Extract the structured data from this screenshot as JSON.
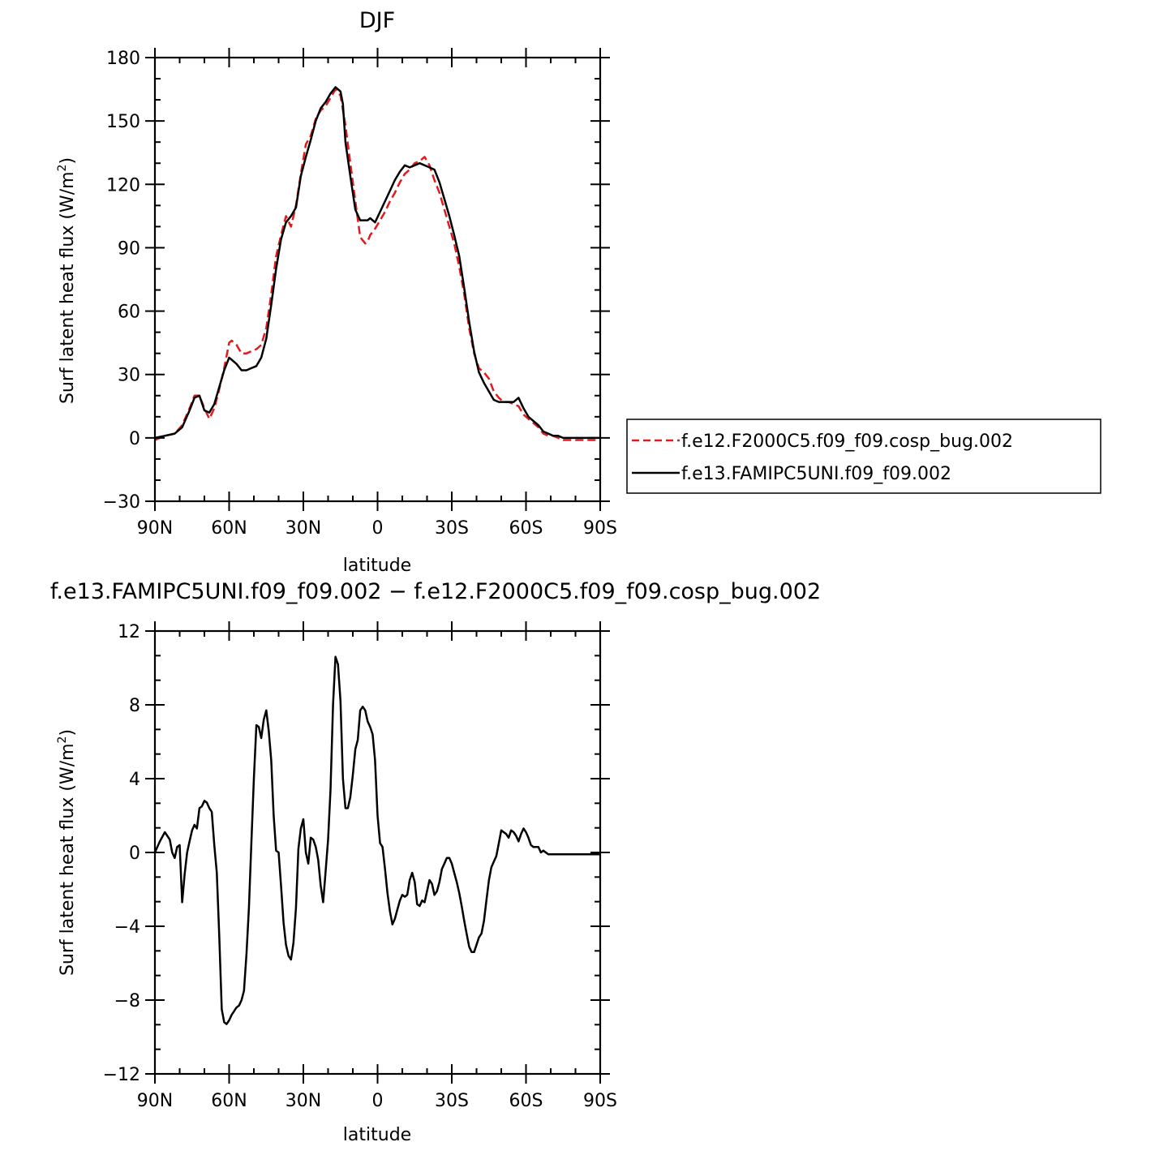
{
  "chart_data": [
    {
      "type": "line",
      "title": "DJF",
      "xlabel": "latitude",
      "ylabel": "Surf latent heat flux (W/m",
      "ylabel_sup": "2",
      "ylabel_tail": ")",
      "xlim": [
        90,
        -90
      ],
      "ylim": [
        -30,
        180
      ],
      "x_ticks": [
        90,
        60,
        30,
        0,
        -30,
        -60,
        -90
      ],
      "x_tick_labels": [
        "90N",
        "60N",
        "30N",
        "0",
        "30S",
        "60S",
        "90S"
      ],
      "y_ticks": [
        -30,
        0,
        30,
        60,
        90,
        120,
        150,
        180
      ],
      "y_tick_labels": [
        "−30",
        "0",
        "30",
        "60",
        "90",
        "120",
        "150",
        "180"
      ],
      "legend_position": "right",
      "series": [
        {
          "name": "f.e12.F2000C5.f09_f09.cosp_bug.002",
          "color": "#e31a1c",
          "style": "dashed",
          "x": [
            90,
            86,
            82,
            79,
            76,
            74,
            72,
            70,
            68,
            66,
            64,
            62,
            60,
            59,
            57,
            55,
            53,
            51,
            49,
            47,
            45,
            43,
            41,
            39,
            37,
            35,
            33,
            31,
            29,
            27,
            25,
            23,
            21,
            19,
            17,
            15,
            14,
            13,
            11,
            9,
            7,
            5,
            4,
            3,
            1,
            -1,
            -3,
            -5,
            -7,
            -9,
            -11,
            -13,
            -15,
            -17,
            -19,
            -21,
            -23,
            -25,
            -27,
            -29,
            -31,
            -33,
            -35,
            -37,
            -39,
            -41,
            -43,
            -45,
            -47,
            -49,
            -51,
            -53,
            -55,
            -57,
            -59,
            -61,
            -63,
            -65,
            -67,
            -69,
            -71,
            -73,
            -75,
            -77,
            -79,
            -81,
            -83,
            -85,
            -87,
            -90
          ],
          "y": [
            -1,
            1,
            2,
            6,
            14,
            20,
            20,
            14,
            9,
            14,
            23,
            33,
            45,
            46,
            44,
            40,
            40,
            41,
            42,
            44,
            52,
            68,
            86,
            96,
            105,
            100,
            110,
            125,
            139,
            143,
            151,
            155,
            157,
            161,
            165,
            162,
            155,
            148,
            130,
            112,
            95,
            92,
            93,
            96,
            99,
            103,
            107,
            112,
            116,
            121,
            125,
            127,
            130,
            131,
            133,
            129,
            122,
            116,
            108,
            100,
            92,
            81,
            68,
            52,
            40,
            33,
            31,
            28,
            22,
            19,
            17,
            17,
            16,
            15,
            11,
            9,
            7,
            5,
            2,
            1,
            1,
            0,
            -1,
            -1,
            -1,
            -1,
            -1,
            -1,
            -1,
            -1
          ]
        },
        {
          "name": "f.e13.FAMIPC5UNI.f09_f09.002",
          "color": "#000000",
          "style": "solid",
          "x": [
            90,
            86,
            82,
            79,
            76,
            74,
            72,
            70,
            68,
            66,
            64,
            62,
            60,
            59,
            57,
            55,
            53,
            51,
            49,
            47,
            45,
            43,
            41,
            39,
            37,
            35,
            33,
            31,
            29,
            27,
            25,
            23,
            21,
            19,
            17,
            15,
            14,
            13,
            11,
            9,
            7,
            5,
            4,
            3,
            1,
            -1,
            -3,
            -5,
            -7,
            -9,
            -11,
            -13,
            -15,
            -17,
            -19,
            -21,
            -23,
            -25,
            -27,
            -29,
            -31,
            -33,
            -35,
            -37,
            -39,
            -41,
            -43,
            -45,
            -47,
            -49,
            -51,
            -53,
            -55,
            -57,
            -59,
            -61,
            -63,
            -65,
            -67,
            -69,
            -71,
            -73,
            -75,
            -77,
            -79,
            -81,
            -83,
            -85,
            -87,
            -90
          ],
          "y": [
            0,
            1,
            2,
            5,
            13,
            19,
            20,
            13,
            12,
            16,
            24,
            32,
            38,
            37,
            35,
            32,
            32,
            33,
            34,
            38,
            47,
            63,
            80,
            94,
            102,
            105,
            109,
            124,
            133,
            141,
            150,
            156,
            159,
            163,
            166,
            164,
            158,
            140,
            124,
            108,
            103,
            103,
            103,
            104,
            102,
            107,
            112,
            117,
            122,
            126,
            129,
            128,
            129,
            130,
            129,
            128,
            127,
            121,
            113,
            105,
            96,
            86,
            71,
            55,
            41,
            31,
            26,
            22,
            18,
            17,
            17,
            17,
            17,
            19,
            14,
            10,
            8,
            6,
            3,
            2,
            1,
            1,
            0,
            0,
            0,
            0,
            0,
            0,
            0,
            0
          ]
        }
      ]
    },
    {
      "type": "line",
      "title": "f.e13.FAMIPC5UNI.f09_f09.002 − f.e12.F2000C5.f09_f09.cosp_bug.002",
      "xlabel": "latitude",
      "ylabel": "Surf latent heat flux (W/m",
      "ylabel_sup": "2",
      "ylabel_tail": ")",
      "xlim": [
        90,
        -90
      ],
      "ylim": [
        -12,
        12
      ],
      "x_ticks": [
        90,
        60,
        30,
        0,
        -30,
        -60,
        -90
      ],
      "x_tick_labels": [
        "90N",
        "60N",
        "30N",
        "0",
        "30S",
        "60S",
        "90S"
      ],
      "y_ticks": [
        -12,
        -8,
        -4,
        0,
        4,
        8,
        12
      ],
      "y_tick_labels": [
        "−12",
        "−8",
        "−4",
        "0",
        "4",
        "8",
        "12"
      ],
      "series": [
        {
          "color": "#000000",
          "style": "solid",
          "x": [
            90,
            88,
            86,
            84,
            83,
            82,
            81,
            80,
            79,
            78,
            77,
            76,
            75,
            74,
            73,
            72,
            71,
            70,
            69,
            68,
            67,
            66,
            65,
            64,
            63,
            62,
            61,
            60,
            59,
            58,
            57,
            56,
            55,
            54,
            53,
            52,
            51,
            50,
            49,
            48,
            47,
            46,
            45,
            44,
            43,
            42,
            41,
            40,
            39,
            38,
            37,
            36,
            35,
            34,
            33,
            32,
            31,
            30,
            29,
            28,
            27,
            26,
            25,
            24,
            23,
            22,
            21,
            20,
            19,
            18,
            17,
            16,
            15,
            14,
            13,
            12,
            11,
            10,
            9,
            8,
            7,
            6,
            5,
            4,
            3,
            2,
            1,
            0,
            -1,
            -2,
            -3,
            -4,
            -5,
            -6,
            -7,
            -8,
            -9,
            -10,
            -11,
            -12,
            -13,
            -14,
            -15,
            -16,
            -17,
            -18,
            -19,
            -20,
            -21,
            -22,
            -23,
            -24,
            -25,
            -26,
            -27,
            -28,
            -29,
            -30,
            -31,
            -32,
            -33,
            -34,
            -35,
            -36,
            -37,
            -38,
            -39,
            -40,
            -41,
            -42,
            -43,
            -44,
            -45,
            -46,
            -47,
            -48,
            -49,
            -50,
            -51,
            -52,
            -53,
            -54,
            -55,
            -56,
            -57,
            -58,
            -59,
            -60,
            -61,
            -62,
            -63,
            -64,
            -65,
            -66,
            -67,
            -68,
            -69,
            -70,
            -71,
            -72,
            -73,
            -74,
            -75,
            -76,
            -77,
            -78,
            -79,
            -80,
            -81,
            -82,
            -83,
            -84,
            -85,
            -86,
            -87,
            -88,
            -89,
            -90
          ],
          "y": [
            0,
            0.6,
            1.1,
            0.7,
            0.0,
            -0.3,
            0.3,
            0.4,
            -2.7,
            -1.2,
            0.0,
            0.6,
            1.2,
            1.5,
            1.3,
            2.4,
            2.5,
            2.8,
            2.7,
            2.4,
            2.2,
            0.4,
            -1.1,
            -4.5,
            -8.5,
            -9.2,
            -9.3,
            -9.1,
            -8.8,
            -8.6,
            -8.4,
            -8.3,
            -8.0,
            -7.5,
            -5.5,
            -3.0,
            0.5,
            4.0,
            6.9,
            6.8,
            6.2,
            7.2,
            7.7,
            6.6,
            5.0,
            2.0,
            0.1,
            0.0,
            -1.8,
            -3.8,
            -5.0,
            -5.6,
            -5.8,
            -4.9,
            -3.0,
            0.2,
            1.3,
            1.8,
            0.0,
            -0.6,
            0.8,
            0.7,
            0.3,
            -0.4,
            -1.8,
            -2.7,
            -1.0,
            0.7,
            3.4,
            8.0,
            10.6,
            10.2,
            8.2,
            4.0,
            2.4,
            2.4,
            3.0,
            4.2,
            5.6,
            6.1,
            7.7,
            7.9,
            7.7,
            7.1,
            6.8,
            6.4,
            5.0,
            2.0,
            0.5,
            0.3,
            -0.9,
            -2.2,
            -3.2,
            -3.9,
            -3.6,
            -3.1,
            -2.6,
            -2.3,
            -2.4,
            -2.3,
            -1.5,
            -1.1,
            -1.6,
            -2.8,
            -2.9,
            -2.6,
            -2.7,
            -2.1,
            -1.5,
            -1.7,
            -2.3,
            -2.1,
            -1.6,
            -0.9,
            -0.6,
            -0.3,
            -0.3,
            -0.6,
            -1.1,
            -1.6,
            -2.2,
            -2.9,
            -3.7,
            -4.4,
            -5.1,
            -5.4,
            -5.4,
            -5.0,
            -4.6,
            -4.4,
            -3.7,
            -2.6,
            -1.5,
            -0.8,
            -0.5,
            -0.2,
            0.5,
            1.2,
            1.1,
            1.0,
            0.8,
            1.2,
            1.1,
            0.9,
            0.6,
            1.0,
            1.3,
            1.1,
            0.8,
            0.4,
            0.3,
            0.3,
            0.3,
            0.0,
            0.1,
            0.0,
            -0.1,
            -0.1,
            -0.1,
            -0.1,
            -0.1,
            -0.1,
            -0.1,
            -0.1,
            -0.1,
            -0.1,
            -0.1,
            -0.1,
            -0.1,
            -0.1,
            -0.1,
            -0.1,
            -0.1,
            -0.1,
            -0.1,
            -0.1,
            -0.1,
            -0.1
          ]
        }
      ]
    }
  ]
}
